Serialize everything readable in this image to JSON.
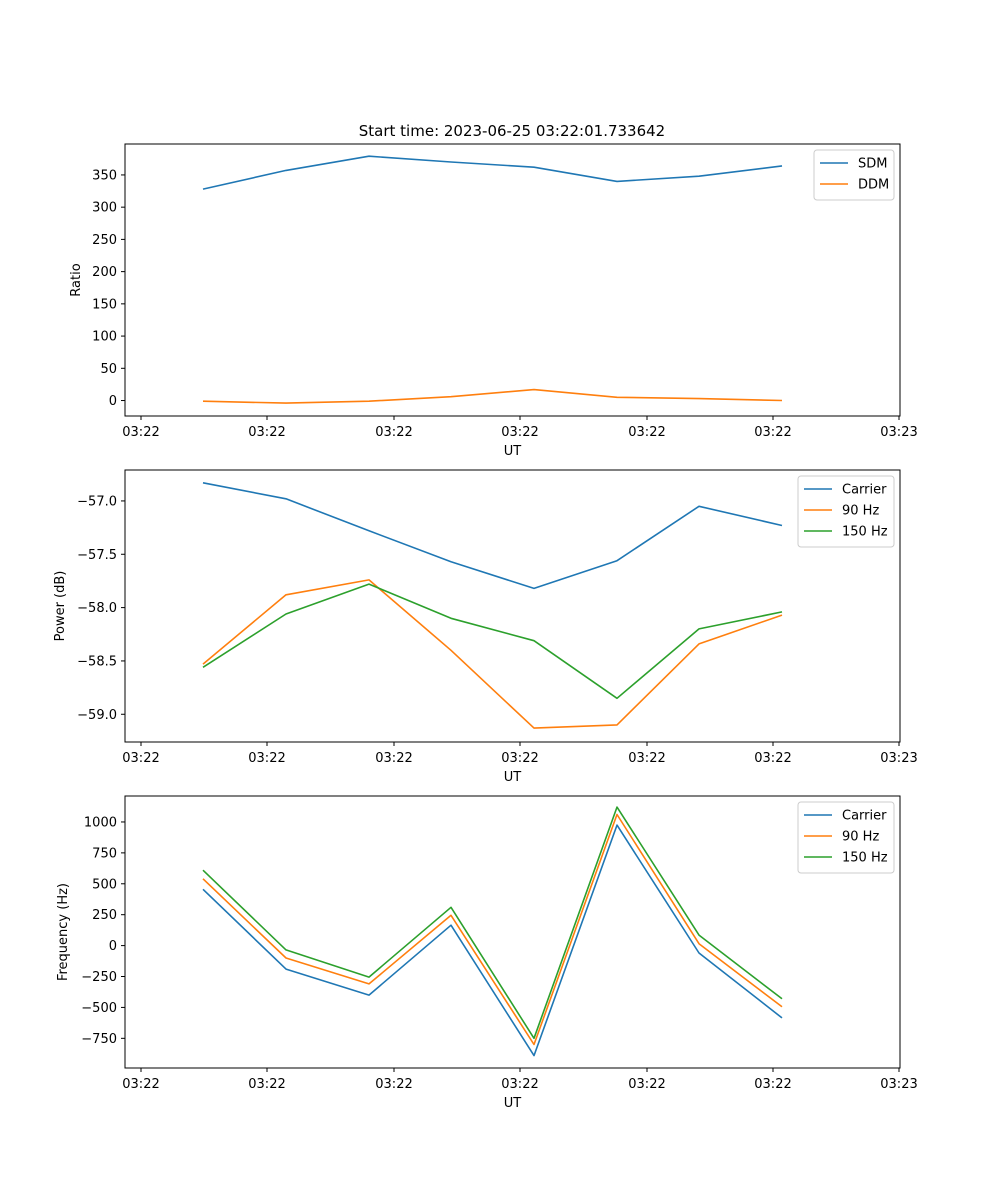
{
  "figure_title": "Start time: 2023-06-25 03:22:01.733642",
  "chart_data": [
    {
      "type": "line",
      "title": "Start time: 2023-06-25 03:22:01.733642",
      "xlabel": "UT",
      "ylabel": "Ratio",
      "x_tick_labels": [
        "03:22",
        "03:22",
        "03:22",
        "03:22",
        "03:22",
        "03:22",
        "03:23"
      ],
      "y_ticks": [
        0,
        50,
        100,
        150,
        200,
        250,
        300,
        350
      ],
      "y_tick_labels": [
        "0",
        "50",
        "100",
        "150",
        "200",
        "250",
        "300",
        "350"
      ],
      "ylim": [
        -24,
        398
      ],
      "legend_position": "upper-right",
      "series": [
        {
          "name": "SDM",
          "color": "#1f77b4",
          "values": [
            328,
            357,
            379,
            370,
            362,
            340,
            348,
            364
          ]
        },
        {
          "name": "DDM",
          "color": "#ff7f0e",
          "values": [
            -1,
            -4,
            -1,
            6,
            17,
            5,
            3,
            0
          ]
        }
      ]
    },
    {
      "type": "line",
      "title": "",
      "xlabel": "UT",
      "ylabel": "Power (dB)",
      "x_tick_labels": [
        "03:22",
        "03:22",
        "03:22",
        "03:22",
        "03:22",
        "03:22",
        "03:23"
      ],
      "y_ticks": [
        -57.0,
        -57.5,
        -58.0,
        -58.5,
        -59.0
      ],
      "y_tick_labels": [
        "−57.0",
        "−57.5",
        "−58.0",
        "−58.5",
        "−59.0"
      ],
      "ylim": [
        -59.26,
        -56.71
      ],
      "legend_position": "upper-right",
      "series": [
        {
          "name": "Carrier",
          "color": "#1f77b4",
          "values": [
            -56.83,
            -56.98,
            -57.28,
            -57.57,
            -57.82,
            -57.56,
            -57.05,
            -57.23
          ]
        },
        {
          "name": "90 Hz",
          "color": "#ff7f0e",
          "values": [
            -58.53,
            -57.88,
            -57.74,
            -58.4,
            -59.13,
            -59.1,
            -58.34,
            -58.07
          ]
        },
        {
          "name": "150 Hz",
          "color": "#2ca02c",
          "values": [
            -58.56,
            -58.06,
            -57.78,
            -58.1,
            -58.31,
            -58.85,
            -58.2,
            -58.04
          ]
        }
      ]
    },
    {
      "type": "line",
      "title": "",
      "xlabel": "UT",
      "ylabel": "Frequency (Hz)",
      "x_tick_labels": [
        "03:22",
        "03:22",
        "03:22",
        "03:22",
        "03:22",
        "03:22",
        "03:23"
      ],
      "y_ticks": [
        1000,
        750,
        500,
        250,
        0,
        -250,
        -500,
        -750
      ],
      "y_tick_labels": [
        "1000",
        "750",
        "500",
        "250",
        "0",
        "−250",
        "−500",
        "−750"
      ],
      "ylim": [
        -990,
        1210
      ],
      "legend_position": "upper-right",
      "series": [
        {
          "name": "Carrier",
          "color": "#1f77b4",
          "values": [
            455,
            -190,
            -400,
            165,
            -890,
            975,
            -60,
            -585
          ]
        },
        {
          "name": "90 Hz",
          "color": "#ff7f0e",
          "values": [
            540,
            -100,
            -310,
            245,
            -800,
            1060,
            15,
            -495
          ]
        },
        {
          "name": "150 Hz",
          "color": "#2ca02c",
          "values": [
            610,
            -35,
            -255,
            310,
            -750,
            1120,
            85,
            -430
          ]
        }
      ]
    }
  ]
}
